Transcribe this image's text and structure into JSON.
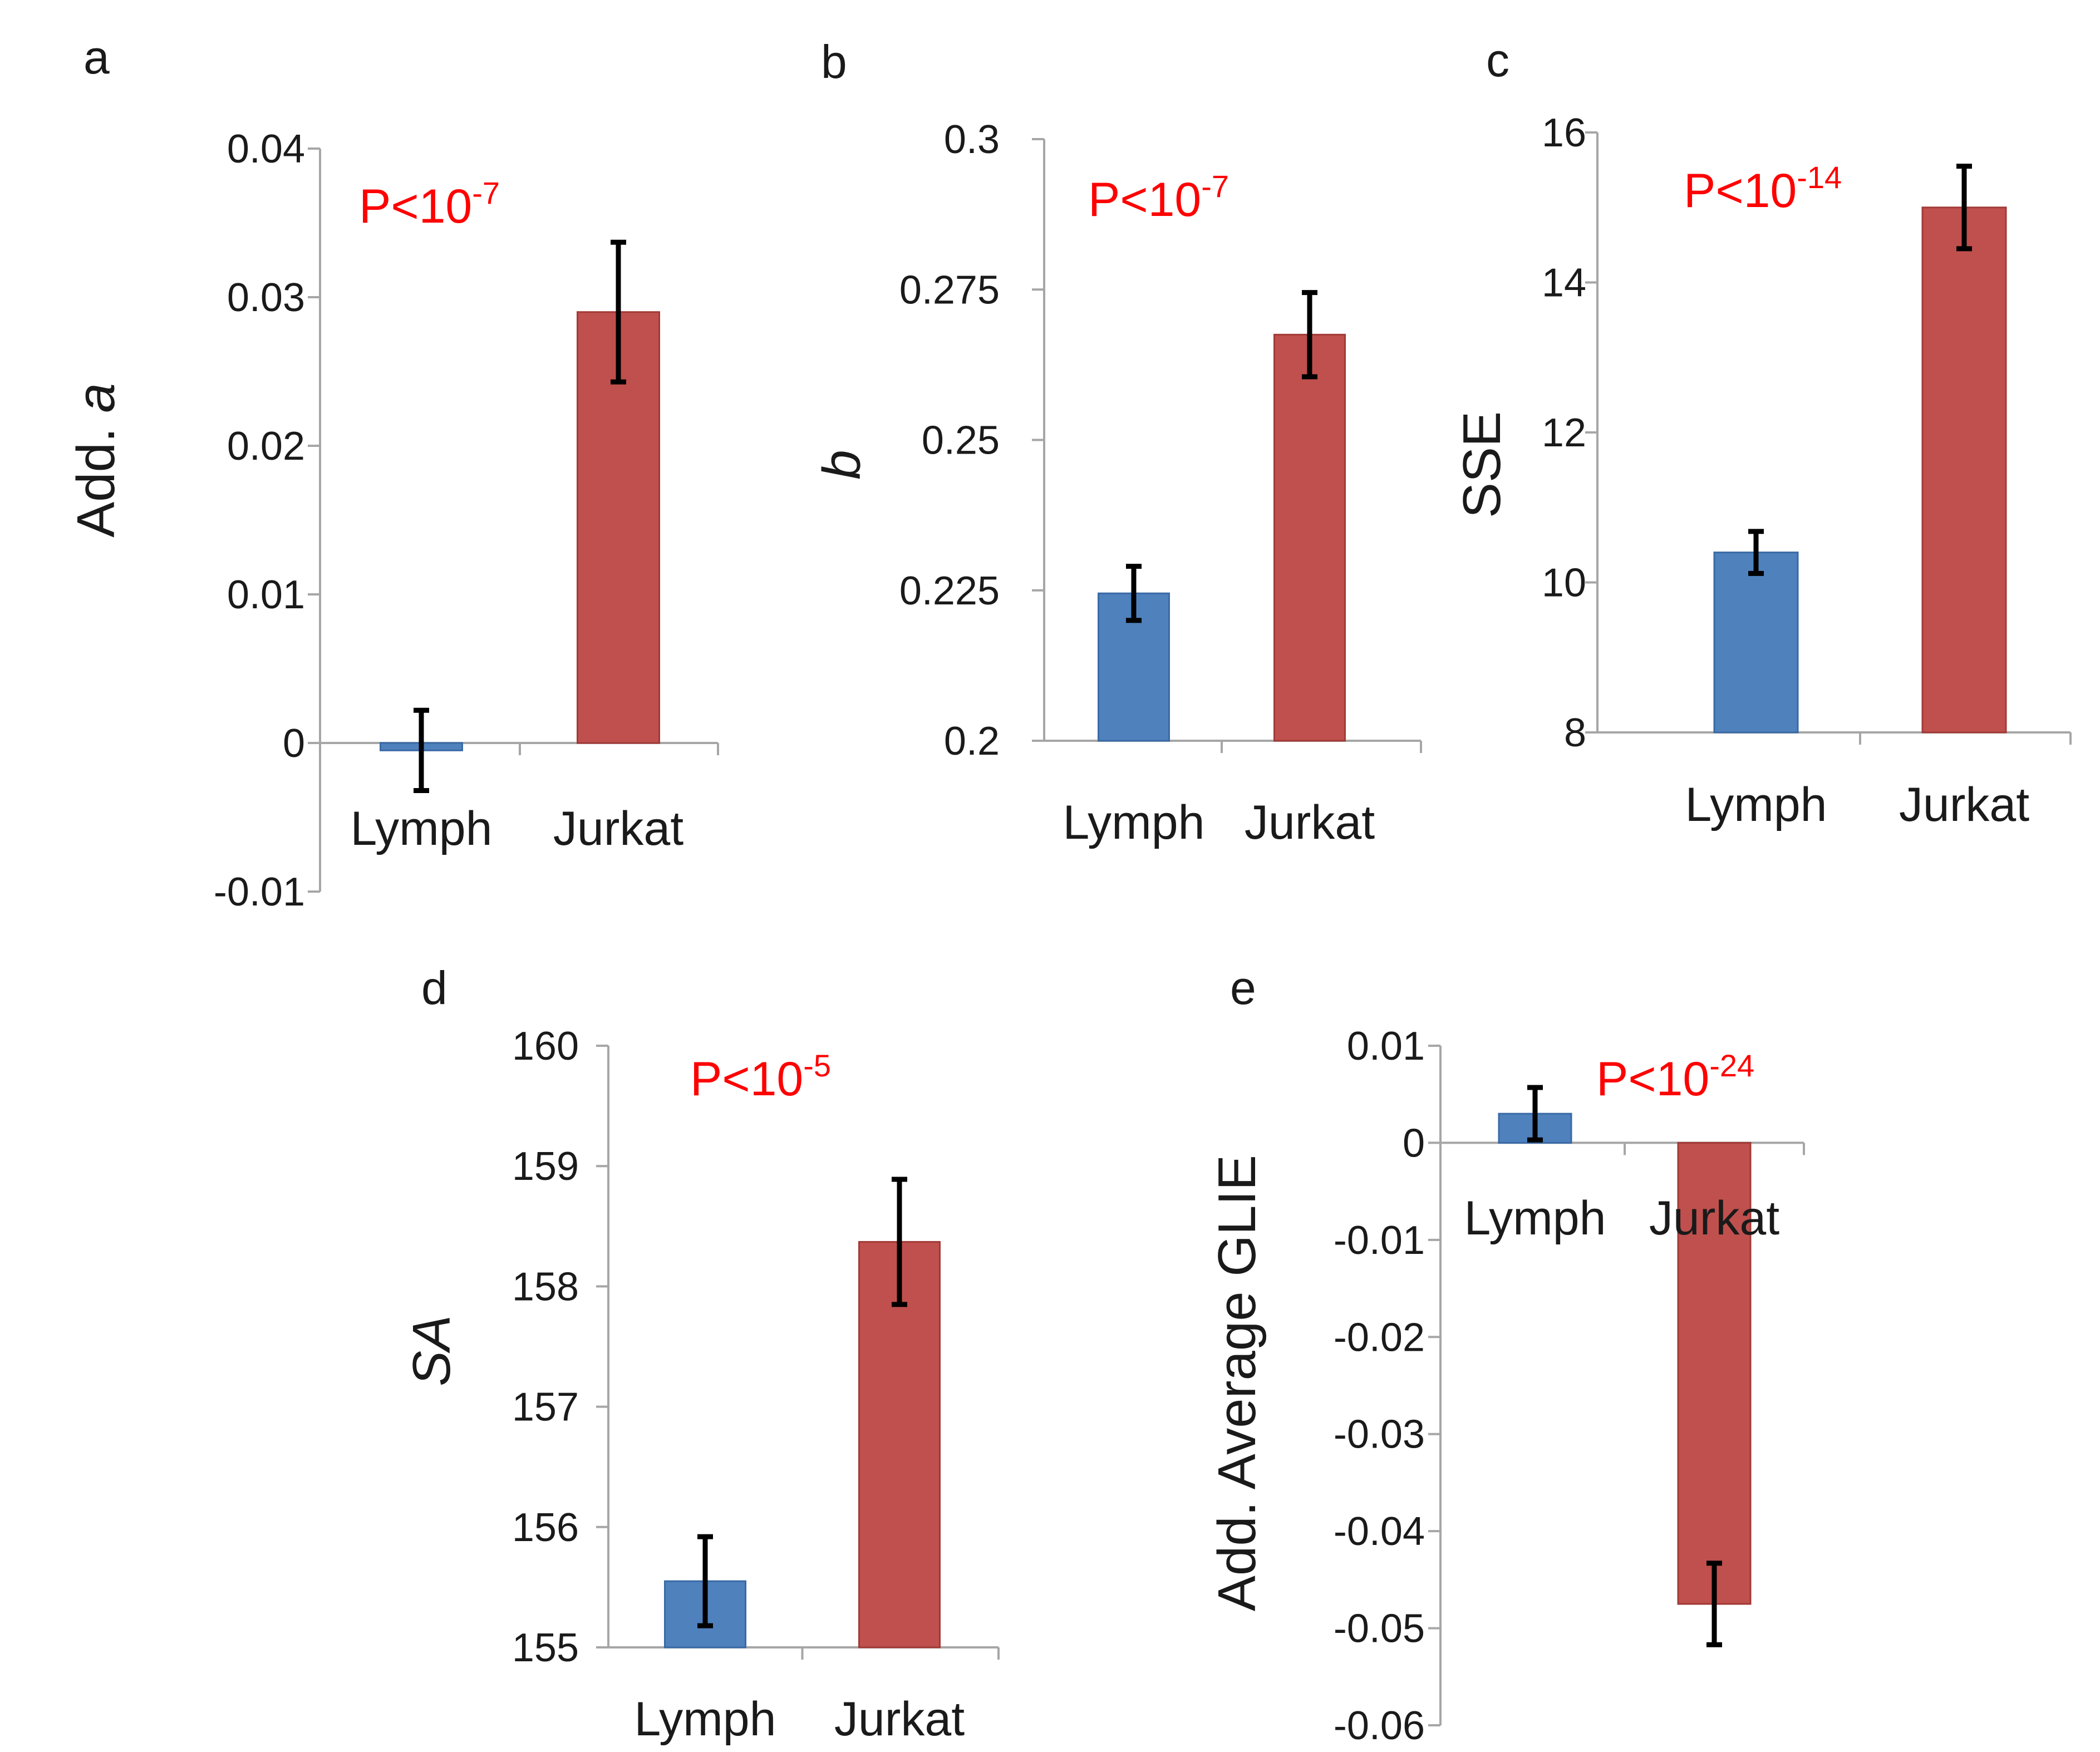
{
  "colors": {
    "lymph": "#4f81bd",
    "jurkat": "#c0504d",
    "lymph_edge": "#3a6aa6",
    "jurkat_edge": "#a13a37",
    "pvalue": "#ff0000",
    "axis": "#a6a6a6"
  },
  "chart_data": [
    {
      "id": "a",
      "type": "bar",
      "panel_label": "a",
      "ylabel_parts": [
        {
          "t": "Add. ",
          "italic": false
        },
        {
          "t": "a",
          "italic": true
        }
      ],
      "categories": [
        "Lymph",
        "Jurkat"
      ],
      "values": [
        -0.0005,
        0.029
      ],
      "errors": [
        0.0027,
        0.0047
      ],
      "ylim": [
        -0.01,
        0.04
      ],
      "ticks": [
        -0.01,
        0,
        0.01,
        0.02,
        0.03,
        0.04
      ],
      "tick_labels": [
        "-0.01",
        "0",
        "0.01",
        "0.02",
        "0.03",
        "0.04"
      ],
      "pvalue": {
        "base": "P<10",
        "exp": "-7"
      }
    },
    {
      "id": "b",
      "type": "bar",
      "panel_label": "b",
      "ylabel_parts": [
        {
          "t": "b",
          "italic": true
        }
      ],
      "categories": [
        "Lymph",
        "Jurkat"
      ],
      "values": [
        0.2245,
        0.2675
      ],
      "errors": [
        0.0045,
        0.007
      ],
      "ylim": [
        0.2,
        0.3
      ],
      "ticks": [
        0.2,
        0.225,
        0.25,
        0.275,
        0.3
      ],
      "tick_labels": [
        "0.2",
        "0.225",
        "0.25",
        "0.275",
        "0.3"
      ],
      "pvalue": {
        "base": "P<10",
        "exp": "-7"
      }
    },
    {
      "id": "c",
      "type": "bar",
      "panel_label": "c",
      "ylabel_parts": [
        {
          "t": "SSE",
          "italic": false
        }
      ],
      "categories": [
        "Lymph",
        "Jurkat"
      ],
      "values": [
        10.4,
        15.0
      ],
      "errors": [
        0.28,
        0.55
      ],
      "ylim": [
        8,
        16
      ],
      "ticks": [
        8,
        10,
        12,
        14,
        16
      ],
      "tick_labels": [
        "8",
        "10",
        "12",
        "14",
        "16"
      ],
      "pvalue": {
        "base": "P<10",
        "exp": "-14"
      }
    },
    {
      "id": "d",
      "type": "bar",
      "panel_label": "d",
      "ylabel_parts": [
        {
          "t": "SA",
          "italic": true
        }
      ],
      "categories": [
        "Lymph",
        "Jurkat"
      ],
      "values": [
        155.55,
        158.37
      ],
      "errors": [
        0.37,
        0.52
      ],
      "ylim": [
        155,
        160
      ],
      "ticks": [
        155,
        156,
        157,
        158,
        159,
        160
      ],
      "tick_labels": [
        "155",
        "156",
        "157",
        "158",
        "159",
        "160"
      ],
      "pvalue": {
        "base": "P<10",
        "exp": "-5"
      }
    },
    {
      "id": "e",
      "type": "bar",
      "panel_label": "e",
      "ylabel_parts": [
        {
          "t": "Add. Average GLIE",
          "italic": false
        }
      ],
      "categories": [
        "Lymph",
        "Jurkat"
      ],
      "values": [
        0.003,
        -0.0475
      ],
      "errors": [
        0.0027,
        0.0042
      ],
      "ylim": [
        -0.06,
        0.01
      ],
      "ticks": [
        -0.06,
        -0.05,
        -0.04,
        -0.03,
        -0.02,
        -0.01,
        0,
        0.01
      ],
      "tick_labels": [
        "-0.06",
        "-0.05",
        "-0.04",
        "-0.03",
        "-0.02",
        "-0.01",
        "0",
        "0.01"
      ],
      "pvalue": {
        "base": "P<10",
        "exp": "-24"
      }
    }
  ]
}
